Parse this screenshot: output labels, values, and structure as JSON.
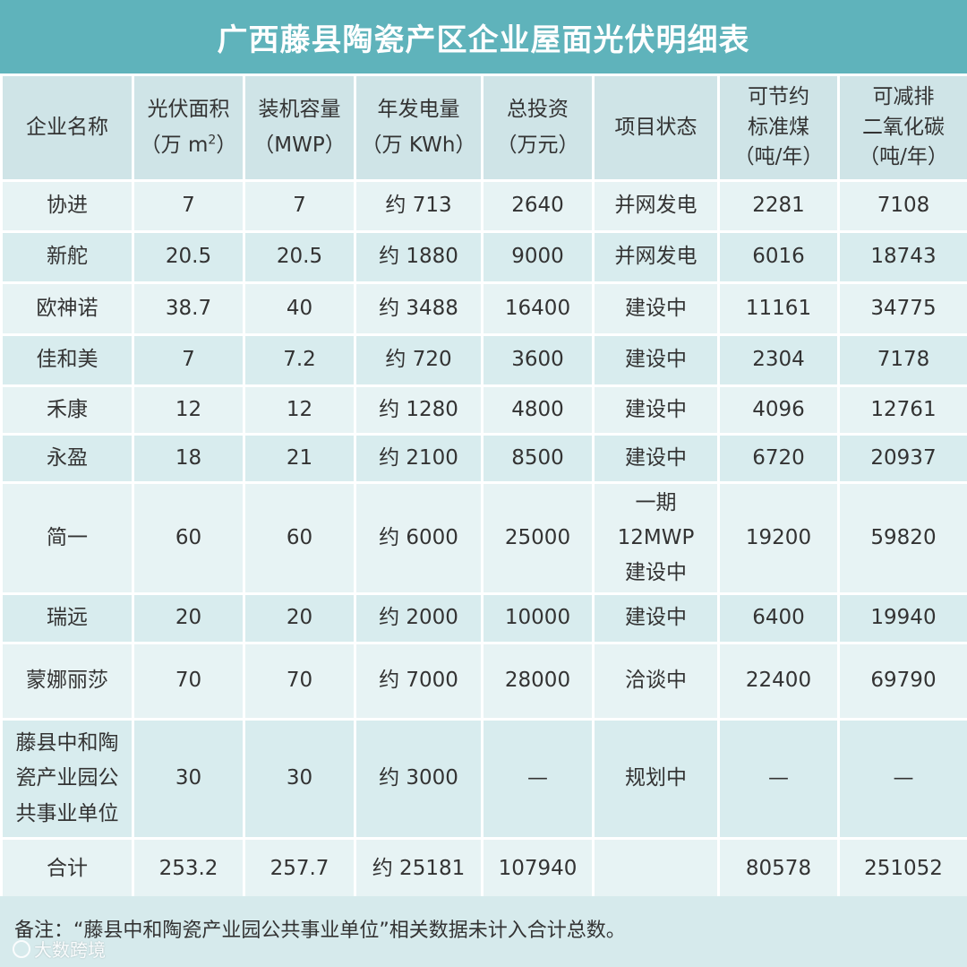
{
  "title": "广西藤县陶瓷产区企业屋面光伏明细表",
  "headers": [
    {
      "line1": "企业名称"
    },
    {
      "line1": "光伏面积",
      "line2_prefix": "（万 m",
      "line2_sup": "2",
      "line2_suffix": "）"
    },
    {
      "line1": "装机容量",
      "line2": "（MWP）"
    },
    {
      "line1": "年发电量",
      "line2": "（万 KWh）"
    },
    {
      "line1": "总投资",
      "line2": "（万元）"
    },
    {
      "line1": "项目状态"
    },
    {
      "line1": "可节约",
      "line2": "标准煤",
      "line3": "（吨/年）"
    },
    {
      "line1": "可减排",
      "line2": "二氧化碳",
      "line3": "（吨/年）"
    }
  ],
  "rows": [
    {
      "name": "协进",
      "area": "7",
      "capacity": "7",
      "output": "约 713",
      "investment": "2640",
      "status": "并网发电",
      "coal": "2281",
      "co2": "7108"
    },
    {
      "name": "新舵",
      "area": "20.5",
      "capacity": "20.5",
      "output": "约 1880",
      "investment": "9000",
      "status": "并网发电",
      "coal": "6016",
      "co2": "18743"
    },
    {
      "name": "欧神诺",
      "area": "38.7",
      "capacity": "40",
      "output": "约 3488",
      "investment": "16400",
      "status": "建设中",
      "coal": "11161",
      "co2": "34775"
    },
    {
      "name": "佳和美",
      "area": "7",
      "capacity": "7.2",
      "output": "约 720",
      "investment": "3600",
      "status": "建设中",
      "coal": "2304",
      "co2": "7178"
    },
    {
      "name": "禾康",
      "area": "12",
      "capacity": "12",
      "output": "约 1280",
      "investment": "4800",
      "status": "建设中",
      "coal": "4096",
      "co2": "12761"
    },
    {
      "name": "永盈",
      "area": "18",
      "capacity": "21",
      "output": "约 2100",
      "investment": "8500",
      "status": "建设中",
      "coal": "6720",
      "co2": "20937"
    },
    {
      "name": "简一",
      "area": "60",
      "capacity": "60",
      "output": "约 6000",
      "investment": "25000",
      "status_lines": [
        "一期",
        "12MWP",
        "建设中"
      ],
      "coal": "19200",
      "co2": "59820"
    },
    {
      "name": "瑞远",
      "area": "20",
      "capacity": "20",
      "output": "约 2000",
      "investment": "10000",
      "status": "建设中",
      "coal": "6400",
      "co2": "19940"
    },
    {
      "name": "蒙娜丽莎",
      "area": "70",
      "capacity": "70",
      "output": "约 7000",
      "investment": "28000",
      "status": "洽谈中",
      "coal": "22400",
      "co2": "69790"
    },
    {
      "name_lines": [
        "藤县中和陶",
        "瓷产业园公",
        "共事业单位"
      ],
      "area": "30",
      "capacity": "30",
      "output": "约 3000",
      "investment": "—",
      "status": "规划中",
      "coal": "—",
      "co2": "—"
    }
  ],
  "total": {
    "name": "合计",
    "area": "253.2",
    "capacity": "257.7",
    "output": "约 25181",
    "investment": "107940",
    "status": "",
    "coal": "80578",
    "co2": "251052"
  },
  "note": "备注：“藤县中和陶瓷产业园公共事业单位”相关数据未计入合计总数。",
  "watermark": "大数跨境"
}
